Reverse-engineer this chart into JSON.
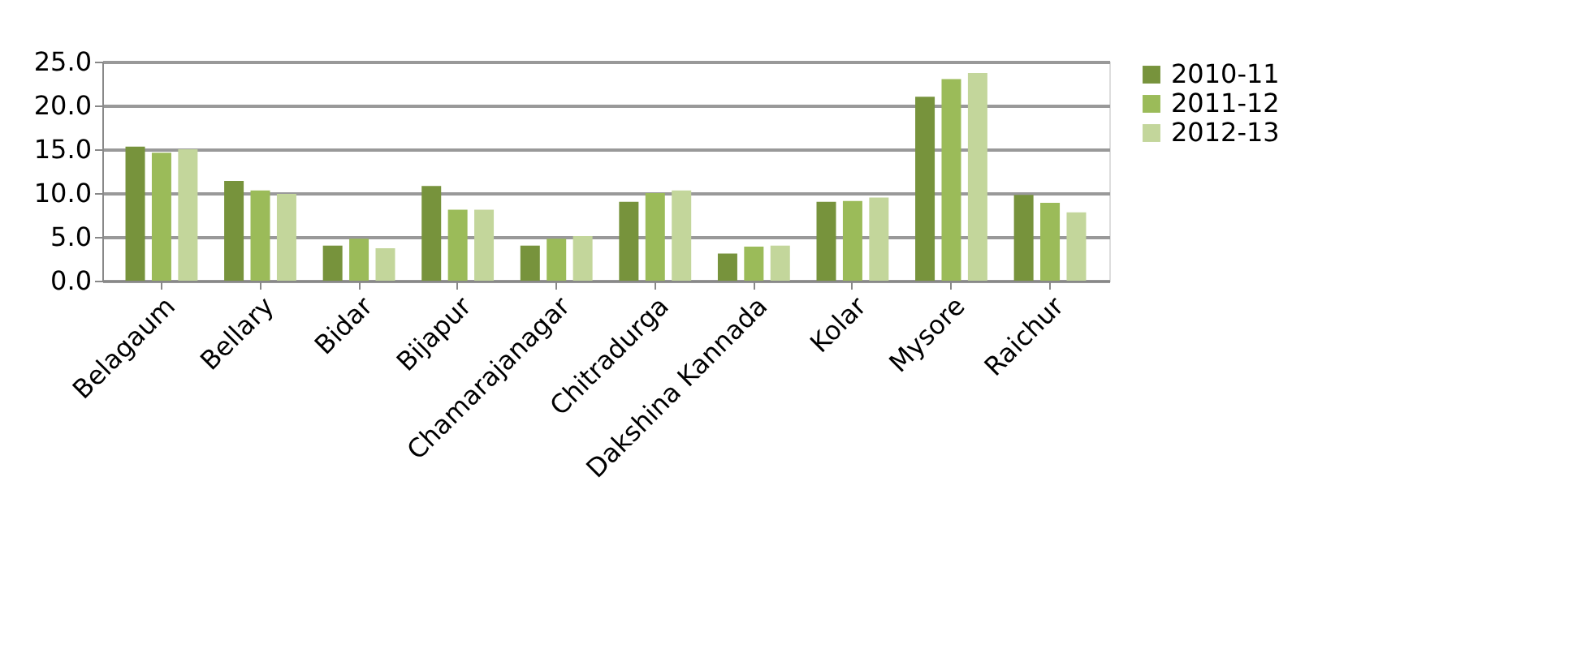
{
  "chart_data": {
    "type": "bar",
    "categories": [
      "Belagaum",
      "Bellary",
      "Bidar",
      "Bijapur",
      "Chamarajanagar",
      "Chitradurga",
      "Dakshina Kannada",
      "Kolar",
      "Mysore",
      "Raichur"
    ],
    "series": [
      {
        "name": "2010-11",
        "color": "#77933c",
        "values": [
          15.3,
          11.4,
          4.0,
          10.8,
          4.0,
          9.0,
          3.1,
          9.0,
          21.0,
          9.8
        ]
      },
      {
        "name": "2011-12",
        "color": "#9bbb59",
        "values": [
          14.6,
          10.3,
          4.8,
          8.1,
          4.8,
          10.0,
          3.9,
          9.1,
          23.0,
          8.9
        ]
      },
      {
        "name": "2012-13",
        "color": "#c3d69b",
        "values": [
          15.0,
          9.9,
          3.7,
          8.1,
          5.1,
          10.3,
          4.0,
          9.5,
          23.7,
          7.8
        ]
      }
    ],
    "ylim": [
      0,
      25
    ],
    "yticks": [
      {
        "value": 0,
        "label": "0.0"
      },
      {
        "value": 5,
        "label": "5.0"
      },
      {
        "value": 10,
        "label": "10.0"
      },
      {
        "value": 15,
        "label": "15.0"
      },
      {
        "value": 20,
        "label": "20.0"
      },
      {
        "value": 25,
        "label": "25.0"
      }
    ],
    "grid": "y",
    "legend": "right"
  }
}
